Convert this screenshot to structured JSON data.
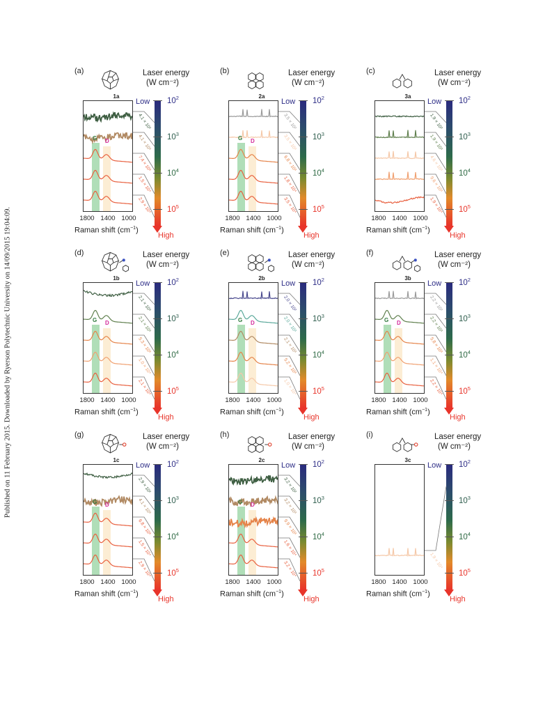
{
  "side_text": "Published on 11 February 2015. Downloaded by Ryerson Polytechnic University on 14/09/2015 19:04:09.",
  "common": {
    "laser_title_1": "Laser energy",
    "laser_title_2": "(W cm⁻²)",
    "low": "Low",
    "high": "High",
    "xlabel": "Raman shift (cm",
    "xlabel_sup": "−1",
    "xlabel_end": ")",
    "x_ticks": [
      "1800",
      "1400",
      "1000"
    ],
    "scale_ticks": [
      {
        "base": "10",
        "exp": "2"
      },
      {
        "base": "10",
        "exp": "3"
      },
      {
        "base": "10",
        "exp": "4"
      },
      {
        "base": "10",
        "exp": "5"
      }
    ],
    "g_label": "G",
    "d_label": "D"
  },
  "colors": {
    "dark_green": "#3f5f43",
    "green": "#5f7f4d",
    "brown": "#b18a63",
    "orange": "#e5844a",
    "light_orange": "#f0a070",
    "red_orange": "#e8603f",
    "peach": "#f5c8a8",
    "purple": "#4a4a8e",
    "teal": "#5aa89a",
    "gray": "#9a9a9a",
    "g_band": "#8fd09a",
    "d_band": "#fbe8c9",
    "low_color": "#2d2d86",
    "high_color": "#e8342a"
  },
  "panels": [
    {
      "label": "(a)",
      "compound": "1a",
      "mol_icon": "corannulene-icon",
      "show_gd": true,
      "curves": [
        {
          "type": "noisy",
          "color": "dark_green",
          "power": "4.1 × 10²"
        },
        {
          "type": "noisy",
          "color": "brown",
          "power": "4.1 × 10³"
        },
        {
          "type": "gd",
          "color": "red_orange",
          "power": "7.4 × 10³"
        },
        {
          "type": "gd",
          "color": "red_orange",
          "power": "1.5 × 10⁴"
        },
        {
          "type": "gd",
          "color": "red_orange",
          "power": "2.9 × 10⁴"
        }
      ]
    },
    {
      "label": "(b)",
      "compound": "2a",
      "mol_icon": "pyrene-icon",
      "show_gd": true,
      "curves": [
        {
          "type": "sharp",
          "color": "gray",
          "power": "3.5 × 10²"
        },
        {
          "type": "sharp",
          "color": "peach",
          "power": "3.5 × 10³"
        },
        {
          "type": "gd",
          "color": "orange",
          "power": "6.8 × 10³"
        },
        {
          "type": "gd",
          "color": "red_orange",
          "power": "1.8 × 10⁴"
        },
        {
          "type": "gd",
          "color": "red_orange",
          "power": "3.5 × 10⁴"
        }
      ]
    },
    {
      "label": "(c)",
      "compound": "3a",
      "mol_icon": "fluorene-icon",
      "show_gd": false,
      "curves": [
        {
          "type": "flat",
          "color": "dark_green",
          "power": "1.9 × 10²"
        },
        {
          "type": "sharp",
          "color": "green",
          "power": "1.9 × 10³"
        },
        {
          "type": "sharp",
          "color": "peach",
          "power": "4.6 × 10³"
        },
        {
          "type": "sharp",
          "color": "light_orange",
          "power": "9.6 × 10³"
        },
        {
          "type": "wavy",
          "color": "red_orange",
          "power": "1.9 × 10⁴"
        }
      ]
    },
    {
      "label": "(d)",
      "compound": "1b",
      "mol_icon": "corannulene-imine-icon",
      "show_gd": true,
      "curves": [
        {
          "type": "dip",
          "color": "dark_green",
          "power": "2.1 × 10³"
        },
        {
          "type": "gd",
          "color": "green",
          "power": "2.1 × 10³"
        },
        {
          "type": "gd",
          "color": "orange",
          "power": "5.3 × 10³"
        },
        {
          "type": "gd",
          "color": "light_orange",
          "power": "1.0 × 10⁴"
        },
        {
          "type": "gd",
          "color": "red_orange",
          "power": "2.1 × 10⁴"
        }
      ]
    },
    {
      "label": "(e)",
      "compound": "2b",
      "mol_icon": "pyrene-imine-icon",
      "show_gd": true,
      "curves": [
        {
          "type": "sharp",
          "color": "purple",
          "power": "2.0 × 10²"
        },
        {
          "type": "gd",
          "color": "teal",
          "power": "2.0 × 10³"
        },
        {
          "type": "gd",
          "color": "brown",
          "power": "2.1 × 10³"
        },
        {
          "type": "gd",
          "color": "orange",
          "power": "5.2 × 10³"
        },
        {
          "type": "gd",
          "color": "peach",
          "power": "1.0 × 10⁴"
        }
      ]
    },
    {
      "label": "(f)",
      "compound": "3b",
      "mol_icon": "fluorene-imine-icon",
      "show_gd": true,
      "curves": [
        {
          "type": "sharp",
          "color": "gray",
          "power": "2.2 × 10²"
        },
        {
          "type": "gd",
          "color": "green",
          "power": "2.2 × 10³"
        },
        {
          "type": "gd",
          "color": "orange",
          "power": "5.8 × 10³"
        },
        {
          "type": "gd",
          "color": "light_orange",
          "power": "1.1 × 10⁴"
        },
        {
          "type": "gd",
          "color": "red_orange",
          "power": "2.2 × 10⁴"
        }
      ]
    },
    {
      "label": "(g)",
      "compound": "1c",
      "mol_icon": "corannulene-ketone-icon",
      "show_gd": true,
      "curves": [
        {
          "type": "dip",
          "color": "dark_green",
          "power": "2.9 × 10²"
        },
        {
          "type": "noisy",
          "color": "brown",
          "power": "4.1 × 10³"
        },
        {
          "type": "gd",
          "color": "red_orange",
          "power": "6.8 × 10³"
        },
        {
          "type": "gd",
          "color": "red_orange",
          "power": "1.5 × 10⁴"
        },
        {
          "type": "gd",
          "color": "red_orange",
          "power": "2.9 × 10⁴"
        }
      ]
    },
    {
      "label": "(h)",
      "compound": "2c",
      "mol_icon": "pyrene-ketone-icon",
      "show_gd": true,
      "curves": [
        {
          "type": "noisy",
          "color": "dark_green",
          "power": "3.2 × 10²"
        },
        {
          "type": "noisy",
          "color": "brown",
          "power": "3.2 × 10³"
        },
        {
          "type": "noisy",
          "color": "orange",
          "power": "9.9 × 10³"
        },
        {
          "type": "gd",
          "color": "red_orange",
          "power": "1.6 × 10⁴"
        },
        {
          "type": "gd",
          "color": "red_orange",
          "power": "3.2 × 10⁴"
        }
      ]
    },
    {
      "label": "(i)",
      "compound": "3c",
      "mol_icon": "fluorenone-icon",
      "show_gd": false,
      "curves": [
        {
          "type": "sharp",
          "color": "peach",
          "power": "1.9 × 10⁴"
        }
      ]
    }
  ]
}
